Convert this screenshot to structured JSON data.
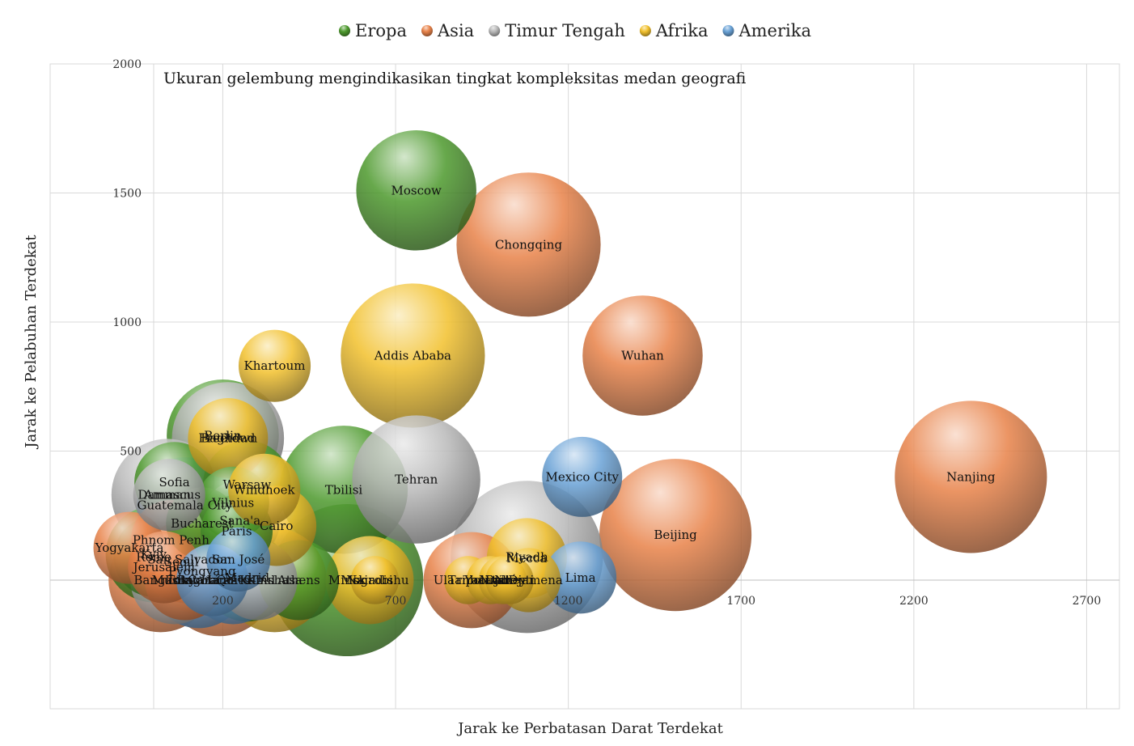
{
  "chart_data": {
    "type": "bubble",
    "annotation": "Ukuran gelembung mengindikasikan tingkat kompleksitas medan geografi",
    "xlabel": "Jarak ke Perbatasan Darat Terdekat",
    "ylabel": "Jarak ke Pelabuhan Terdekat",
    "xlim": [
      -300,
      2800
    ],
    "ylim": [
      -500,
      2000
    ],
    "xticks": [
      200,
      700,
      1200,
      1700,
      2200,
      2700
    ],
    "yticks": [
      500,
      1000,
      1500,
      2000
    ],
    "legend_position": "top",
    "series": [
      {
        "name": "Eropa",
        "color": "#4e9a2e",
        "points": [
          {
            "label": "Moscow",
            "x": 760,
            "y": 1510,
            "size": 75
          },
          {
            "label": "Tbilisi",
            "x": 550,
            "y": 350,
            "size": 80
          },
          {
            "label": "Warsaw",
            "x": 270,
            "y": 370,
            "size": 55
          },
          {
            "label": "Berlin",
            "x": 200,
            "y": 560,
            "size": 70
          },
          {
            "label": "Sofia",
            "x": 60,
            "y": 380,
            "size": 50
          },
          {
            "label": "Bucharest",
            "x": 140,
            "y": 220,
            "size": 45
          },
          {
            "label": "Vilnius",
            "x": 230,
            "y": 300,
            "size": 45
          },
          {
            "label": "Madrid",
            "x": 270,
            "y": 10,
            "size": 55
          },
          {
            "label": "Athens",
            "x": 420,
            "y": 0,
            "size": 50
          },
          {
            "label": "Rome",
            "x": 0,
            "y": 90,
            "size": 50
          },
          {
            "label": "Paris",
            "x": 240,
            "y": 190,
            "size": 45
          },
          {
            "label": "Kyiv",
            "x": 0,
            "y": 100,
            "size": 60
          },
          {
            "label": "Minsk",
            "x": 560,
            "y": 0,
            "size": 95
          }
        ]
      },
      {
        "name": "Asia",
        "color": "#e8834a",
        "points": [
          {
            "label": "Chongqing",
            "x": 1085,
            "y": 1300,
            "size": 90
          },
          {
            "label": "Wuhan",
            "x": 1415,
            "y": 870,
            "size": 75
          },
          {
            "label": "Nanjing",
            "x": 2365,
            "y": 400,
            "size": 95
          },
          {
            "label": "Beijing",
            "x": 1510,
            "y": 175,
            "size": 95
          },
          {
            "label": "Phnom Penh",
            "x": 50,
            "y": 155,
            "size": 50
          },
          {
            "label": "Yogyakarta",
            "x": -70,
            "y": 125,
            "size": 45
          },
          {
            "label": "Jerusalem",
            "x": 30,
            "y": 50,
            "size": 45
          },
          {
            "label": "Pyongyang",
            "x": 140,
            "y": 35,
            "size": 55
          },
          {
            "label": "Seoul",
            "x": 80,
            "y": 70,
            "size": 50
          },
          {
            "label": "Hanoi",
            "x": 190,
            "y": 0,
            "size": 70
          },
          {
            "label": "Tokyo",
            "x": 90,
            "y": 0,
            "size": 50
          },
          {
            "label": "Bangkok",
            "x": 20,
            "y": 0,
            "size": 65
          },
          {
            "label": "Ulaanbaatar",
            "x": 920,
            "y": 0,
            "size": 60
          }
        ]
      },
      {
        "name": "Timur Tengah",
        "color": "#b9b9b9",
        "points": [
          {
            "label": "Tehran",
            "x": 760,
            "y": 390,
            "size": 80
          },
          {
            "label": "Baghdad",
            "x": 215,
            "y": 550,
            "size": 70
          },
          {
            "label": "Damascus",
            "x": 45,
            "y": 330,
            "size": 45
          },
          {
            "label": "Sana'a",
            "x": 250,
            "y": 230,
            "size": 50
          },
          {
            "label": "Riyadh",
            "x": 1080,
            "y": 90,
            "size": 95
          },
          {
            "label": "Amman",
            "x": 40,
            "y": 330,
            "size": 70
          },
          {
            "label": "Muscat",
            "x": 60,
            "y": 0,
            "size": 55
          },
          {
            "label": "Kabul",
            "x": 300,
            "y": 0,
            "size": 50
          }
        ]
      },
      {
        "name": "Afrika",
        "color": "#f2c12e",
        "points": [
          {
            "label": "Addis Ababa",
            "x": 750,
            "y": 870,
            "size": 90
          },
          {
            "label": "Khartoum",
            "x": 350,
            "y": 830,
            "size": 45
          },
          {
            "label": "Cairo",
            "x": 355,
            "y": 210,
            "size": 50
          },
          {
            "label": "Windhoek",
            "x": 320,
            "y": 350,
            "size": 45
          },
          {
            "label": "Freetown",
            "x": 215,
            "y": 550,
            "size": 50
          },
          {
            "label": "Mecca",
            "x": 1080,
            "y": 85,
            "size": 50
          },
          {
            "label": "Tripoli",
            "x": 910,
            "y": 0,
            "size": 30
          },
          {
            "label": "Yaoundé",
            "x": 975,
            "y": 0,
            "size": 30
          },
          {
            "label": "Niamey",
            "x": 1010,
            "y": 0,
            "size": 30
          },
          {
            "label": "Djibouti",
            "x": 1030,
            "y": 0,
            "size": 30
          },
          {
            "label": "N'Djamena",
            "x": 1085,
            "y": 0,
            "size": 40
          },
          {
            "label": "Nairobi",
            "x": 625,
            "y": 0,
            "size": 55
          },
          {
            "label": "Mogadishu",
            "x": 640,
            "y": 0,
            "size": 30
          },
          {
            "label": "Kinshasa",
            "x": 350,
            "y": 0,
            "size": 65
          }
        ]
      },
      {
        "name": "Amerika",
        "color": "#6aa2d6",
        "points": [
          {
            "label": "Mexico City",
            "x": 1240,
            "y": 400,
            "size": 50
          },
          {
            "label": "Lima",
            "x": 1235,
            "y": 10,
            "size": 45
          },
          {
            "label": "Guatemala City",
            "x": 90,
            "y": 290,
            "size": 60
          },
          {
            "label": "San Salvador",
            "x": 100,
            "y": 80,
            "size": 55
          },
          {
            "label": "San José",
            "x": 245,
            "y": 80,
            "size": 40
          },
          {
            "label": "Bogotá",
            "x": 130,
            "y": 0,
            "size": 60
          },
          {
            "label": "Quito",
            "x": 230,
            "y": 0,
            "size": 55
          },
          {
            "label": "Caracas",
            "x": 170,
            "y": 0,
            "size": 45
          }
        ]
      }
    ]
  }
}
